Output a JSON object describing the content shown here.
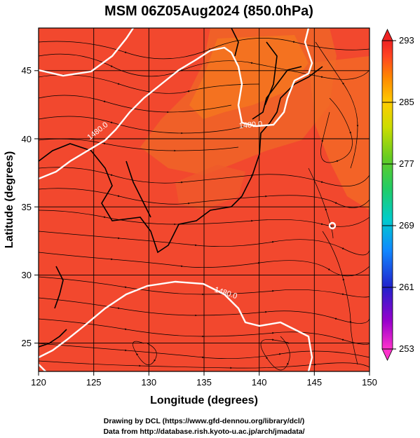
{
  "title": "MSM 06Z05Aug2024 (850.0hPa)",
  "xlabel": "Longitude (degrees)",
  "ylabel": "Latitude  (degrees)",
  "x_ticks": [
    "120",
    "125",
    "130",
    "135",
    "140",
    "145",
    "150"
  ],
  "y_ticks": [
    "25",
    "30",
    "35",
    "40",
    "45"
  ],
  "colorbar_ticks": [
    "293",
    "285",
    "277",
    "269",
    "261",
    "253"
  ],
  "contour_labels": [
    "1480.0",
    "1480.0",
    "1480.0"
  ],
  "credits": {
    "line1": "Drawing by DCL (https://www.gfd-dennou.org/library/dcl/)",
    "line2": "Data from http://database.rish.kyoto-u.ac.jp/arch/jmadata/"
  },
  "chart_data": {
    "type": "heatmap",
    "title": "MSM 06Z05Aug2024 (850.0hPa)",
    "xlabel": "Longitude (degrees)",
    "ylabel": "Latitude  (degrees)",
    "xlim": [
      120,
      150
    ],
    "ylim": [
      22.4,
      47.6
    ],
    "x_ticks": [
      120,
      125,
      130,
      135,
      140,
      145,
      150
    ],
    "y_ticks": [
      25,
      30,
      35,
      40,
      45
    ],
    "colorbar": {
      "min": 253,
      "max": 293,
      "ticks": [
        293,
        285,
        277,
        269,
        261,
        253
      ],
      "colors": [
        "#ff33cc",
        "#9900cc",
        "#2222cc",
        "#1188ff",
        "#00cccc",
        "#22cc66",
        "#66cc22",
        "#ccdd00",
        "#ffcc00",
        "#ff8800",
        "#ff4422",
        "#ee2222"
      ]
    },
    "contour_value": 1480.0,
    "contour_line_color": "#ffffff",
    "overlay": "streamlines",
    "colors": {
      "field_main": "#f2482e",
      "field_warm": "#f06028",
      "field_hot": "#f78a1f"
    }
  }
}
